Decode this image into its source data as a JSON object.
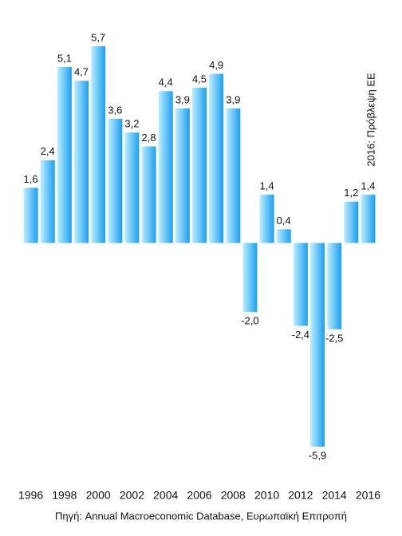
{
  "chart_data": {
    "type": "bar",
    "categories": [
      "1996",
      null,
      "1998",
      null,
      "2000",
      null,
      "2002",
      null,
      "2004",
      null,
      "2006",
      null,
      "2008",
      null,
      "2010",
      null,
      "2012",
      null,
      "2014",
      null,
      "2016"
    ],
    "values": [
      1.6,
      2.4,
      5.1,
      4.7,
      5.7,
      3.6,
      3.2,
      2.8,
      4.4,
      3.9,
      4.5,
      4.9,
      3.9,
      -2.0,
      1.4,
      0.4,
      -2.4,
      -5.9,
      -2.5,
      1.2,
      1.4
    ],
    "value_labels": [
      "1,6",
      "2,4",
      "5,1",
      "4,7",
      "5,7",
      "3,6",
      "3,2",
      "2,8",
      "4,4",
      "3,9",
      "4,5",
      "4,9",
      "3,9",
      "-2,0",
      "1,4",
      "0,4",
      "-2,4",
      "-5,9",
      "-2,5",
      "1,2",
      "1,4"
    ],
    "color": "#1a9ff0",
    "annotation": "2016: Πρόβλεψη ΕΕ",
    "source": "Πηγή: Annual Macroeconomic Database, Ευρωπαϊκή Επιτροπή"
  }
}
